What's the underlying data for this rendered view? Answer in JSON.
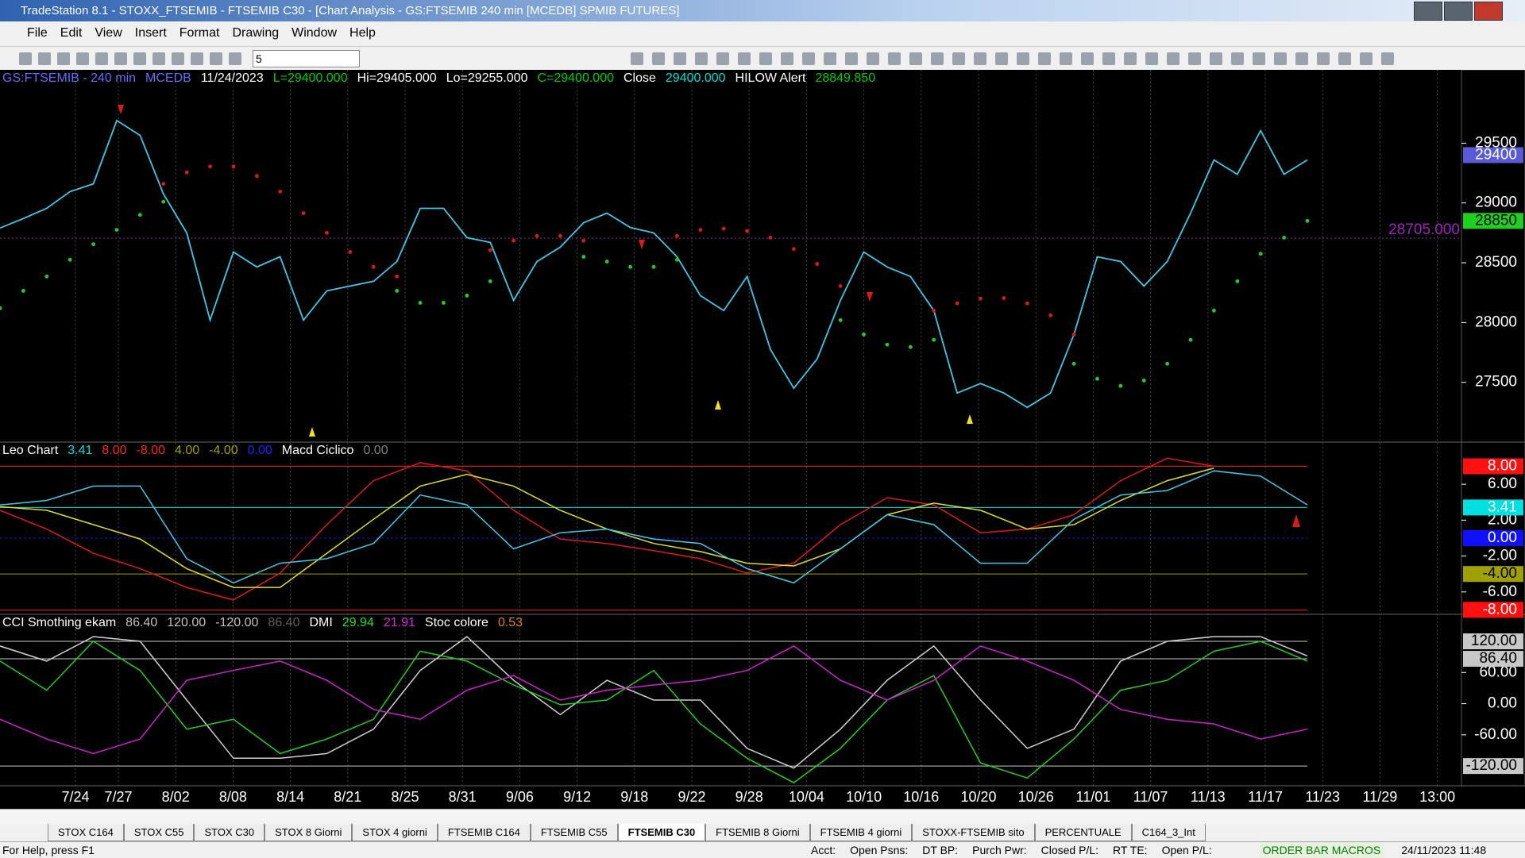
{
  "window": {
    "title": "TradeStation 8.1 - STOXX_FTSEMIB - FTSEMIB C30 - [Chart Analysis - GS:FTSEMIB  240 min  [MCEDB] SPMIB FUTURES]"
  },
  "menu": [
    "File",
    "Edit",
    "View",
    "Insert",
    "Format",
    "Drawing",
    "Window",
    "Help"
  ],
  "toolbar": {
    "input": "5"
  },
  "time_axis": {
    "labels": [
      "7/24",
      "7/27",
      "8/02",
      "8/08",
      "8/14",
      "8/21",
      "8/25",
      "8/31",
      "9/06",
      "9/12",
      "9/18",
      "9/22",
      "9/28",
      "10/04",
      "10/10",
      "10/16",
      "10/20",
      "10/26",
      "11/01",
      "11/07",
      "11/13",
      "11/17",
      "11/23",
      "11/29",
      "13:00"
    ]
  },
  "chart_data": [
    {
      "type": "line",
      "legend": [
        {
          "text": "GS:FTSEMIB - 240 min",
          "color": "#6a6aff"
        },
        {
          "text": "MCEDB",
          "color": "#6a6aff"
        },
        {
          "text": "11/24/2023",
          "color": "#ffffff"
        },
        {
          "text": "L=29400.000",
          "color": "#00d000"
        },
        {
          "text": "Hi=29405.000",
          "color": "#ffffff"
        },
        {
          "text": "Lo=29255.000",
          "color": "#ffffff"
        },
        {
          "text": "C=29400.000",
          "color": "#00d000"
        },
        {
          "text": "Close",
          "color": "#ffffff"
        },
        {
          "text": "29400.000",
          "color": "#00e0e0"
        },
        {
          "text": "HILOW Alert",
          "color": "#ffffff"
        },
        {
          "text": "28849.850",
          "color": "#00d000"
        }
      ],
      "ylim": [
        27000,
        30100
      ],
      "yticks": [
        27500,
        28000,
        28500,
        29000,
        29500
      ],
      "markers": [
        {
          "value": 29400,
          "bg": "#5a5ad8",
          "fg": "#ffffff"
        },
        {
          "value": 28850,
          "bg": "#20d020",
          "fg": "#000000"
        }
      ],
      "reference": {
        "value": 28705,
        "label": "28705.000",
        "color": "#a020c0"
      },
      "series": [
        {
          "color": "#40c8e8",
          "style": "line",
          "values": [
            28790,
            28870,
            28955,
            29095,
            29160,
            29690,
            29565,
            29075,
            28750,
            28020,
            28590,
            28465,
            28550,
            28020,
            28265,
            28305,
            28345,
            28510,
            28955,
            28955,
            28710,
            28670,
            28185,
            28510,
            28630,
            28835,
            28915,
            28795,
            28750,
            28550,
            28225,
            28100,
            28385,
            27775,
            27450,
            27695,
            28185,
            28590,
            28465,
            28385,
            28100,
            27410,
            27490,
            27410,
            27290,
            27410,
            27900,
            28550,
            28510,
            28305,
            28510,
            28915,
            29360,
            29240,
            29605,
            29240,
            29360
          ]
        },
        {
          "color": "#20d020",
          "style": "dots",
          "values": [
            28120,
            28265,
            28385,
            28525,
            28655,
            28775,
            28900,
            29010,
            null,
            null,
            null,
            null,
            null,
            null,
            null,
            null,
            null,
            28265,
            28165,
            28165,
            28225,
            28345,
            null,
            null,
            null,
            28550,
            28510,
            28465,
            28465,
            28525,
            null,
            null,
            null,
            null,
            null,
            null,
            28020,
            27900,
            27815,
            27795,
            27855,
            null,
            null,
            null,
            null,
            null,
            27655,
            27530,
            27470,
            27515,
            27655,
            27855,
            28100,
            28345,
            28575,
            28710,
            28850
          ]
        },
        {
          "color": "#e01818",
          "style": "dots",
          "values": [
            null,
            null,
            null,
            null,
            null,
            null,
            null,
            29160,
            29255,
            29305,
            29305,
            29225,
            29095,
            28915,
            28750,
            28590,
            28465,
            28385,
            null,
            null,
            null,
            28605,
            28685,
            28725,
            28725,
            28685,
            null,
            null,
            null,
            28725,
            28775,
            28785,
            28765,
            28710,
            28615,
            28490,
            28305,
            null,
            null,
            null,
            28100,
            28160,
            28200,
            28205,
            28160,
            28060,
            27900,
            null,
            null,
            null,
            null,
            null,
            null,
            null,
            null,
            null,
            null
          ]
        }
      ]
    },
    {
      "type": "line",
      "legend": [
        {
          "text": "Leo Chart",
          "color": "#ffffff"
        },
        {
          "text": "3.41",
          "color": "#00e0e0"
        },
        {
          "text": "8.00",
          "color": "#ff2020"
        },
        {
          "text": "-8.00",
          "color": "#ff2020"
        },
        {
          "text": "4.00",
          "color": "#a0a000"
        },
        {
          "text": "-4.00",
          "color": "#a0a000"
        },
        {
          "text": "0.00",
          "color": "#2020ff"
        },
        {
          "text": "Macd Ciclico",
          "color": "#ffffff"
        },
        {
          "text": "0.00",
          "color": "#808080"
        }
      ],
      "ylim": [
        -8.5,
        10.7
      ],
      "yticks": [
        {
          "value": 6,
          "label": "6.00"
        },
        {
          "value": 2,
          "label": "2.00"
        },
        {
          "value": -2,
          "label": "-2.00"
        },
        {
          "value": -6,
          "label": "-6.00"
        }
      ],
      "markers": [
        {
          "value": 8,
          "label": "8.00",
          "bg": "#ff1010",
          "fg": "#ffffff"
        },
        {
          "value": 3.41,
          "label": "3.41",
          "bg": "#00e0e0",
          "fg": "#ffffff"
        },
        {
          "value": 0,
          "label": "0.00",
          "bg": "#1010ff",
          "fg": "#ffffff"
        },
        {
          "value": -4,
          "label": "-4.00",
          "bg": "#a0a000",
          "fg": "#000000"
        },
        {
          "value": -8,
          "label": "-8.00",
          "bg": "#ff1010",
          "fg": "#ffffff"
        }
      ],
      "series": [
        {
          "color": "#e01818",
          "style": "line",
          "values": [
            3.1,
            1.0,
            -1.7,
            -3.4,
            -5.5,
            -6.9,
            -3.9,
            1.5,
            6.4,
            8.4,
            7.5,
            3.1,
            -0.1,
            -0.6,
            -1.4,
            -2.3,
            -3.9,
            -2.8,
            1.5,
            4.5,
            3.7,
            0.6,
            1.0,
            2.6,
            6.4,
            8.9,
            8.0,
            null,
            null
          ]
        },
        {
          "color": "#e0e020",
          "style": "line",
          "values": [
            3.5,
            3.1,
            1.5,
            -0.1,
            -3.4,
            -5.5,
            -5.5,
            -1.7,
            2.1,
            5.8,
            7.1,
            5.8,
            3.1,
            1.0,
            -0.6,
            -1.5,
            -2.8,
            -3.1,
            -1.2,
            2.6,
            3.9,
            3.1,
            1.0,
            1.5,
            4.2,
            6.4,
            7.8,
            null,
            null
          ]
        },
        {
          "color": "#40c8e8",
          "style": "line",
          "values": [
            3.68,
            4.2,
            5.8,
            5.8,
            -2.3,
            -5.0,
            -2.8,
            -2.3,
            -0.6,
            4.8,
            3.7,
            -1.2,
            0.6,
            1.0,
            -0.1,
            -0.6,
            -3.4,
            -5.0,
            -1.2,
            2.6,
            1.5,
            -2.8,
            -2.8,
            2.1,
            4.8,
            5.3,
            7.5,
            6.9,
            3.7
          ]
        }
      ]
    },
    {
      "type": "line",
      "legend": [
        {
          "text": "CCI Smothing ekam",
          "color": "#ffffff"
        },
        {
          "text": "86.40",
          "color": "#c0c0c0"
        },
        {
          "text": "120.00",
          "color": "#c0c0c0"
        },
        {
          "text": "-120.00",
          "color": "#c0c0c0"
        },
        {
          "text": "86.40",
          "color": "#606060"
        },
        {
          "text": "DMI",
          "color": "#ffffff"
        },
        {
          "text": "29.94",
          "color": "#20e020"
        },
        {
          "text": "21.91",
          "color": "#e020e0"
        },
        {
          "text": "Stoc colore",
          "color": "#ffffff"
        },
        {
          "text": "0.53",
          "color": "#e08020"
        }
      ],
      "ylim": [
        -158,
        172
      ],
      "yticks": [
        {
          "value": 60,
          "label": "60.00"
        },
        {
          "value": 0,
          "label": "0.00"
        },
        {
          "value": -60,
          "label": "-60.00"
        }
      ],
      "markers": [
        {
          "value": 120,
          "label": "120.00",
          "bg": "#c8c8c8",
          "fg": "#000000"
        },
        {
          "value": 86.4,
          "label": "86.40",
          "bg": "#c8c8c8",
          "fg": "#000000"
        },
        {
          "value": -120,
          "label": "-120.00",
          "bg": "#c8c8c8",
          "fg": "#000000"
        }
      ],
      "series": [
        {
          "color": "#d0d0d0",
          "style": "line",
          "values": [
            111,
            82,
            129,
            120,
            7,
            -105,
            -105,
            -96,
            -49,
            64,
            129,
            45,
            -21,
            45,
            7,
            7,
            -86,
            -124,
            -49,
            45,
            111,
            7,
            -86,
            -49,
            82,
            120,
            129,
            129,
            92
          ]
        },
        {
          "color": "#20d020",
          "style": "line",
          "values": [
            82,
            26,
            120,
            64,
            -49,
            -30,
            -96,
            -68,
            -30,
            101,
            82,
            36,
            -2,
            7,
            64,
            -39,
            -105,
            -152,
            -86,
            7,
            54,
            -114,
            -143,
            -68,
            26,
            45,
            101,
            120,
            82
          ]
        },
        {
          "color": "#d020d0",
          "style": "line",
          "values": [
            -30,
            -68,
            -96,
            -68,
            45,
            64,
            82,
            45,
            -11,
            -30,
            26,
            54,
            7,
            26,
            36,
            45,
            64,
            111,
            45,
            7,
            45,
            111,
            82,
            45,
            -11,
            -30,
            -39,
            -68,
            -49
          ]
        }
      ]
    }
  ],
  "tabs": [
    "STOX C164",
    "STOX C55",
    "STOX  C30",
    "STOX  8 Giorni",
    "STOX 4 giorni",
    "FTSEMIB C164",
    "FTSEMIB C55",
    "FTSEMIB C30",
    "FTSEMIB  8 Giorni",
    "FTSEMIB  4 giorni",
    "STOXX-FTSEMIB sito",
    "PERCENTUALE",
    "C164_3_Int"
  ],
  "active_tab": 7,
  "status": {
    "help": "For Help, press F1",
    "fields": [
      "Acct:",
      "Open Psns:",
      "DT BP:",
      "Purch Pwr:",
      "Closed P/L:",
      "RT TE:",
      "Open P/L:"
    ],
    "macros": "ORDER BAR MACROS",
    "clock": "24/11/2023 11:48"
  }
}
